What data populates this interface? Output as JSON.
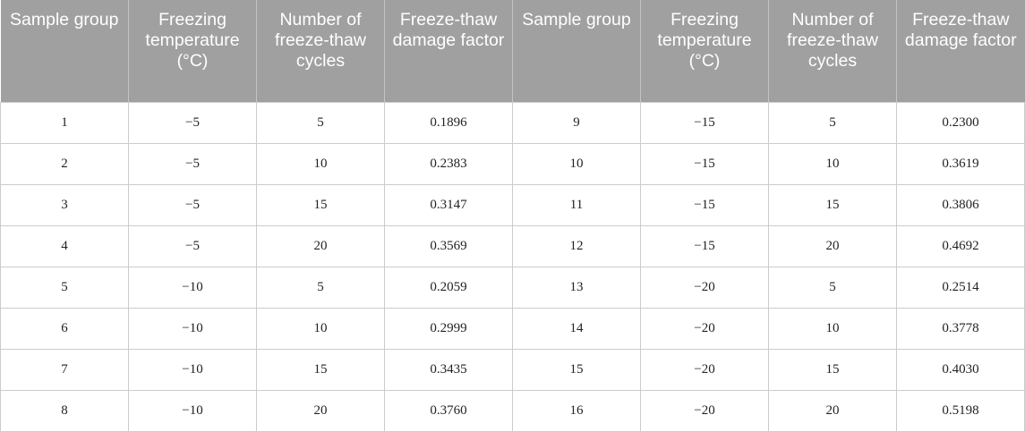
{
  "table": {
    "headers": [
      "Sample group",
      "Freezing temperature (°C)",
      "Number of freeze-thaw cycles",
      "Freeze-thaw damage factor",
      "Sample group",
      "Freezing temperature (°C)",
      "Number of freeze-thaw cycles",
      "Freeze-thaw damage factor"
    ],
    "rows": [
      [
        "1",
        "−5",
        "5",
        "0.1896",
        "9",
        "−15",
        "5",
        "0.2300"
      ],
      [
        "2",
        "−5",
        "10",
        "0.2383",
        "10",
        "−15",
        "10",
        "0.3619"
      ],
      [
        "3",
        "−5",
        "15",
        "0.3147",
        "11",
        "−15",
        "15",
        "0.3806"
      ],
      [
        "4",
        "−5",
        "20",
        "0.3569",
        "12",
        "−15",
        "20",
        "0.4692"
      ],
      [
        "5",
        "−10",
        "5",
        "0.2059",
        "13",
        "−20",
        "5",
        "0.2514"
      ],
      [
        "6",
        "−10",
        "10",
        "0.2999",
        "14",
        "−20",
        "10",
        "0.3778"
      ],
      [
        "7",
        "−10",
        "15",
        "0.3435",
        "15",
        "−20",
        "15",
        "0.4030"
      ],
      [
        "8",
        "−10",
        "20",
        "0.3760",
        "16",
        "−20",
        "20",
        "0.5198"
      ]
    ]
  }
}
